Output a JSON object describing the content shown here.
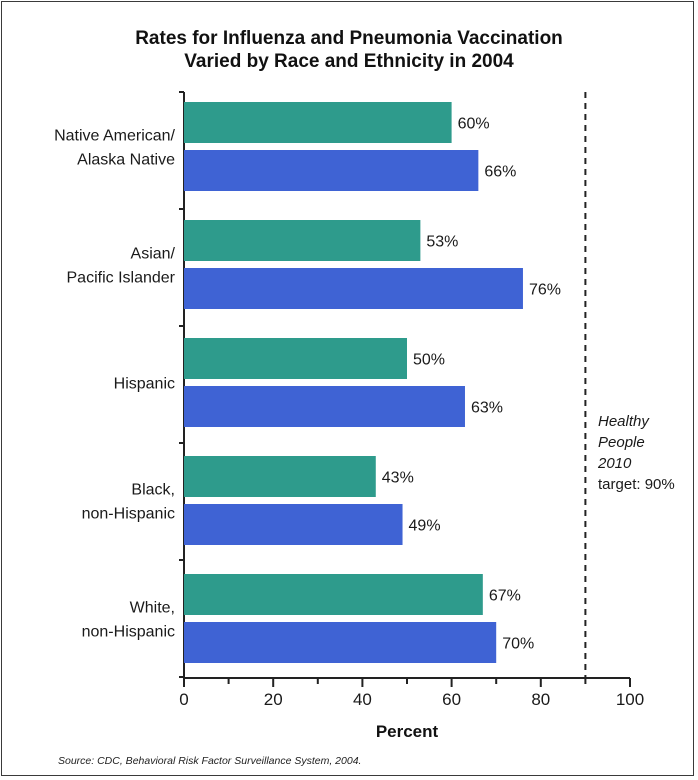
{
  "chart_data": {
    "type": "bar",
    "orientation": "horizontal",
    "title": "Rates for Influenza and Pneumonia Vaccination",
    "subtitle": "Varied by Race and Ethnicity in 2004",
    "xlabel": "Percent",
    "xlim": [
      0,
      100
    ],
    "xticks": [
      "0",
      "20",
      "40",
      "60",
      "80",
      "100"
    ],
    "categories": [
      [
        "Native American/",
        "Alaska Native"
      ],
      [
        "Asian/",
        "Pacific Islander"
      ],
      [
        "Hispanic"
      ],
      [
        "Black,",
        "non-Hispanic"
      ],
      [
        "White,",
        "non-Hispanic"
      ]
    ],
    "series": [
      {
        "color": "#2e9b8c",
        "values": [
          60,
          53,
          50,
          43,
          67
        ],
        "labels": [
          "60%",
          "53%",
          "50%",
          "43%",
          "67%"
        ]
      },
      {
        "color": "#3f63d4",
        "values": [
          66,
          76,
          63,
          49,
          70
        ],
        "labels": [
          "66%",
          "76%",
          "63%",
          "49%",
          "70%"
        ]
      }
    ],
    "target": {
      "value": 90,
      "line_style": "dashed",
      "label_italic": [
        "Healthy",
        "People",
        "2010"
      ],
      "label_plain": "target: 90%"
    },
    "source": "Source: CDC, Behavioral Risk Factor Surveillance System, 2004."
  }
}
